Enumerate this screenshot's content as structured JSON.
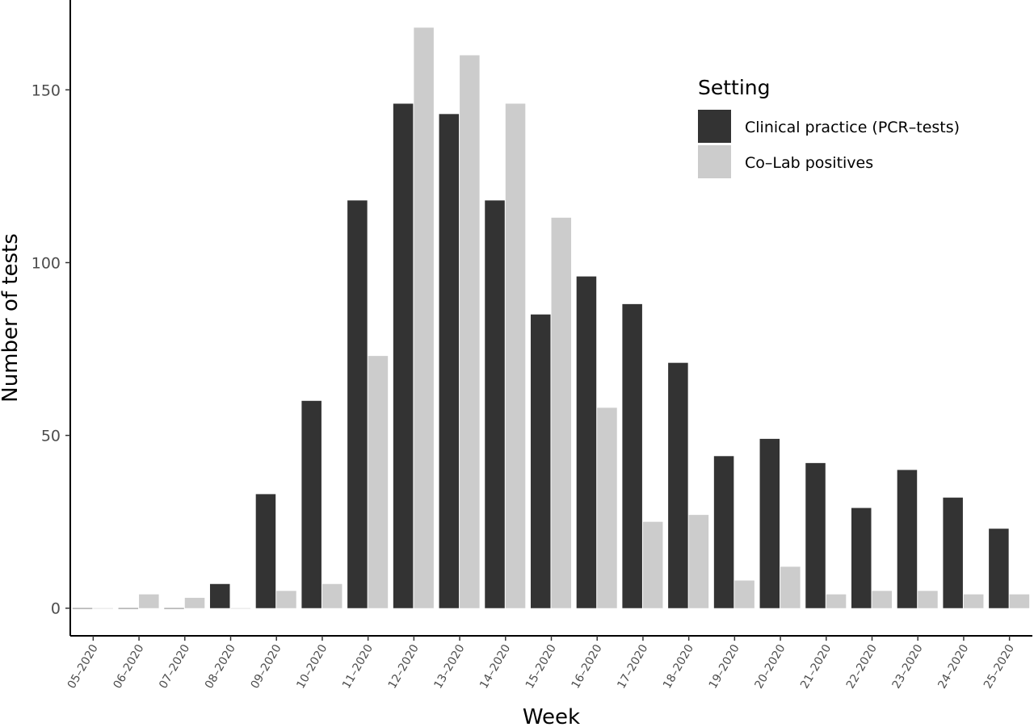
{
  "chart_data": {
    "type": "bar",
    "xlabel": "Week",
    "ylabel": "Number of tests",
    "ylim": [
      -8,
      176
    ],
    "yticks": [
      0,
      50,
      100,
      150
    ],
    "grid": false,
    "legend": {
      "title": "Setting",
      "position": "top-right"
    },
    "categories": [
      "05–2020",
      "06–2020",
      "07–2020",
      "08–2020",
      "09–2020",
      "10–2020",
      "11–2020",
      "12–2020",
      "13–2020",
      "14–2020",
      "15–2020",
      "16–2020",
      "17–2020",
      "18–2020",
      "19–2020",
      "20–2020",
      "21–2020",
      "22–2020",
      "23–2020",
      "24–2020",
      "25–2020"
    ],
    "series": [
      {
        "name": "Clinical practice (PCR–tests)",
        "color": "#333333",
        "values": [
          0,
          0,
          0,
          7,
          33,
          60,
          118,
          146,
          143,
          118,
          85,
          96,
          88,
          71,
          44,
          49,
          42,
          29,
          40,
          32,
          23
        ]
      },
      {
        "name": "Co–Lab positives",
        "color": "#cccccc",
        "values": [
          0,
          4,
          3,
          0,
          5,
          7,
          73,
          168,
          160,
          146,
          113,
          58,
          25,
          27,
          8,
          12,
          4,
          5,
          5,
          4,
          4
        ]
      }
    ]
  }
}
